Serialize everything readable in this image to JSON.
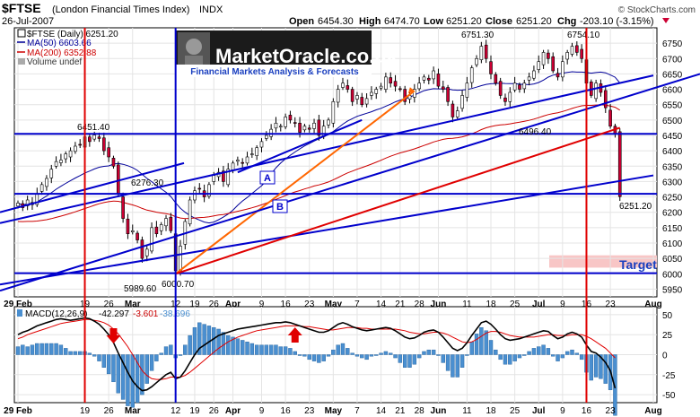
{
  "header": {
    "symbol": "$FTSE",
    "index_name": "(London Financial Times Index)",
    "exchange": "INDX",
    "date": "26-Jul-2007",
    "open_label": "Open",
    "open": "6454.30",
    "high_label": "High",
    "high": "6474.70",
    "low_label": "Low",
    "low": "6251.20",
    "close_label": "Close",
    "close": "6251.20",
    "chg_label": "Chg",
    "chg": "-203.10 (-3.15%)",
    "watermark": "© StockCharts.com"
  },
  "logo": {
    "name": "MarketOracle.co.uk",
    "tagline": "Financial Markets Analysis & Forecasts"
  },
  "legend": {
    "price": "$FTSE (Daily) 6251.20",
    "ma50": "MA(50) 6603.66",
    "ma200": "MA(200) 6352.88",
    "volume": "Volume undef"
  },
  "macd_legend": {
    "label": "MACD(12,26,9)",
    "macd": "-42.297",
    "signal": "-3.601",
    "hist": "-38.696"
  },
  "colors": {
    "up": "#ffffff",
    "down": "#cc0033",
    "wick": "#000000",
    "blue_line": "#0000cc",
    "red_line": "#e00000",
    "orange_line": "#ff6600",
    "ma50": "#000099",
    "ma200": "#cc0000",
    "histogram": "#4a8fd0",
    "target_band": "#f8c6c6",
    "target_text": "#1a3fbf"
  },
  "annotations": {
    "label_A": "A",
    "label_B": "B",
    "target": "Target",
    "p_6451": "6451.40",
    "p_6276": "6276.30",
    "p_5989": "5989.60",
    "p_6000": "6000.70",
    "p_6751": "6751.30",
    "p_6754": "6754.10",
    "p_6496": "6496.40",
    "p_6251": "6251.20"
  },
  "chart_data": {
    "type": "candlestick",
    "title": "$FTSE (London Financial Times Index) INDX",
    "xlabel": "",
    "ylabel": "",
    "ylim": [
      5925,
      6800
    ],
    "y_ticks": [
      5950,
      6000,
      6050,
      6100,
      6150,
      6200,
      6250,
      6300,
      6350,
      6400,
      6450,
      6500,
      6550,
      6600,
      6650,
      6700,
      6750
    ],
    "x_ticks": [
      {
        "label": "29 Feb",
        "i": 0
      },
      {
        "label": "19",
        "i": 14
      },
      {
        "label": "26",
        "i": 19
      },
      {
        "label": "Mar",
        "i": 24
      },
      {
        "label": "12",
        "i": 33
      },
      {
        "label": "19",
        "i": 37
      },
      {
        "label": "26",
        "i": 41
      },
      {
        "label": "Apr",
        "i": 45
      },
      {
        "label": "9",
        "i": 51
      },
      {
        "label": "16",
        "i": 56
      },
      {
        "label": "23",
        "i": 61
      },
      {
        "label": "May",
        "i": 66
      },
      {
        "label": "7",
        "i": 71
      },
      {
        "label": "14",
        "i": 76
      },
      {
        "label": "21",
        "i": 80
      },
      {
        "label": "28",
        "i": 84
      },
      {
        "label": "Jun",
        "i": 88
      },
      {
        "label": "11",
        "i": 94
      },
      {
        "label": "18",
        "i": 99
      },
      {
        "label": "25",
        "i": 104
      },
      {
        "label": "Jul",
        "i": 109
      },
      {
        "label": "9",
        "i": 114
      },
      {
        "label": "16",
        "i": 119
      },
      {
        "label": "23",
        "i": 124
      },
      {
        "label": "Aug",
        "i": 133
      }
    ],
    "grid": true,
    "closes": [
      6230,
      6215,
      6240,
      6225,
      6260,
      6290,
      6310,
      6340,
      6365,
      6370,
      6390,
      6400,
      6415,
      6420,
      6445,
      6430,
      6451,
      6440,
      6400,
      6380,
      6350,
      6260,
      6180,
      6130,
      6140,
      6110,
      6050,
      6080,
      6150,
      6130,
      6160,
      6180,
      6140,
      6010,
      6090,
      6170,
      6240,
      6270,
      6276,
      6250,
      6290,
      6320,
      6330,
      6300,
      6340,
      6360,
      6370,
      6360,
      6380,
      6390,
      6410,
      6430,
      6450,
      6470,
      6490,
      6480,
      6510,
      6500,
      6490,
      6460,
      6480,
      6470,
      6490,
      6450,
      6480,
      6500,
      6560,
      6600,
      6620,
      6600,
      6560,
      6580,
      6550,
      6570,
      6590,
      6600,
      6610,
      6640,
      6620,
      6610,
      6600,
      6560,
      6580,
      6600,
      6620,
      6640,
      6630,
      6660,
      6610,
      6600,
      6560,
      6510,
      6530,
      6580,
      6620,
      6670,
      6700,
      6740,
      6700,
      6650,
      6620,
      6580,
      6560,
      6590,
      6620,
      6600,
      6620,
      6640,
      6660,
      6690,
      6720,
      6700,
      6660,
      6640,
      6690,
      6720,
      6740,
      6720,
      6700,
      6620,
      6580,
      6620,
      6590,
      6540,
      6480,
      6454,
      6251
    ],
    "macd": [
      25,
      28,
      30,
      33,
      36,
      38,
      40,
      42,
      44,
      45,
      44,
      43,
      44,
      45,
      46,
      45,
      42,
      38,
      32,
      25,
      15,
      2,
      -10,
      -22,
      -33,
      -40,
      -45,
      -44,
      -40,
      -35,
      -30,
      -25,
      -22,
      -30,
      -28,
      -20,
      -10,
      0,
      8,
      12,
      16,
      20,
      24,
      26,
      28,
      30,
      32,
      33,
      34,
      35,
      36,
      37,
      38,
      39,
      40,
      40,
      41,
      40,
      38,
      36,
      34,
      32,
      30,
      28,
      28,
      30,
      34,
      38,
      40,
      38,
      35,
      33,
      31,
      30,
      31,
      32,
      33,
      34,
      33,
      30,
      26,
      22,
      20,
      21,
      24,
      28,
      30,
      31,
      28,
      22,
      15,
      8,
      5,
      8,
      15,
      24,
      32,
      40,
      42,
      38,
      32,
      25,
      20,
      18,
      19,
      20,
      22,
      24,
      26,
      28,
      30,
      29,
      24,
      20,
      22,
      26,
      28,
      26,
      22,
      12,
      4,
      2,
      -3,
      -10,
      -20,
      -42
    ],
    "signal": [
      20,
      22,
      25,
      27,
      29,
      31,
      33,
      35,
      37,
      39,
      40,
      41,
      42,
      43,
      44,
      44,
      43,
      42,
      40,
      37,
      32,
      26,
      18,
      10,
      0,
      -10,
      -20,
      -26,
      -30,
      -31,
      -31,
      -30,
      -28,
      -28,
      -28,
      -26,
      -22,
      -17,
      -12,
      -7,
      -2,
      3,
      8,
      12,
      16,
      19,
      22,
      24,
      26,
      28,
      30,
      31,
      32,
      33,
      34,
      35,
      36,
      36,
      36,
      36,
      35,
      35,
      34,
      33,
      32,
      31,
      31,
      32,
      33,
      34,
      34,
      34,
      33,
      33,
      32,
      32,
      32,
      32,
      32,
      32,
      31,
      30,
      28,
      27,
      26,
      26,
      27,
      28,
      28,
      27,
      25,
      22,
      19,
      16,
      15,
      16,
      19,
      23,
      27,
      29,
      29,
      28,
      26,
      24,
      23,
      22,
      22,
      22,
      22,
      23,
      24,
      25,
      25,
      24,
      24,
      24,
      25,
      25,
      25,
      23,
      20,
      16,
      12,
      8,
      2,
      -4
    ],
    "macd_ylim": [
      -60,
      60
    ],
    "macd_ticks": [
      -50,
      -25,
      0,
      25,
      50
    ],
    "series": [
      {
        "name": "$FTSE (Daily)",
        "type": "candlestick"
      },
      {
        "name": "MA(50)",
        "type": "line"
      },
      {
        "name": "MA(200)",
        "type": "line"
      },
      {
        "name": "MACD(12,26,9)",
        "type": "line"
      },
      {
        "name": "Signal",
        "type": "line"
      },
      {
        "name": "Histogram",
        "type": "bar"
      }
    ],
    "trendlines": [
      {
        "name": "upper-channel",
        "from": [
          0,
          6200
        ],
        "to": [
          44,
          6360
        ]
      },
      {
        "name": "line-A",
        "from": [
          0,
          6165
        ],
        "to": [
          133,
          6645
        ]
      },
      {
        "name": "line-B",
        "from": [
          0,
          5965
        ],
        "to": [
          133,
          6320
        ]
      },
      {
        "name": "orange-line",
        "from": [
          33,
          6000
        ],
        "to": [
          83,
          6595
        ]
      },
      {
        "name": "red-line",
        "from": [
          33,
          6000
        ],
        "to": [
          126,
          6475
        ]
      }
    ],
    "hlines": [
      6455,
      6260,
      6002
    ],
    "vlines": [
      14,
      33,
      119
    ],
    "target_band": [
      6020,
      6060
    ],
    "legend_position": "top-left"
  }
}
